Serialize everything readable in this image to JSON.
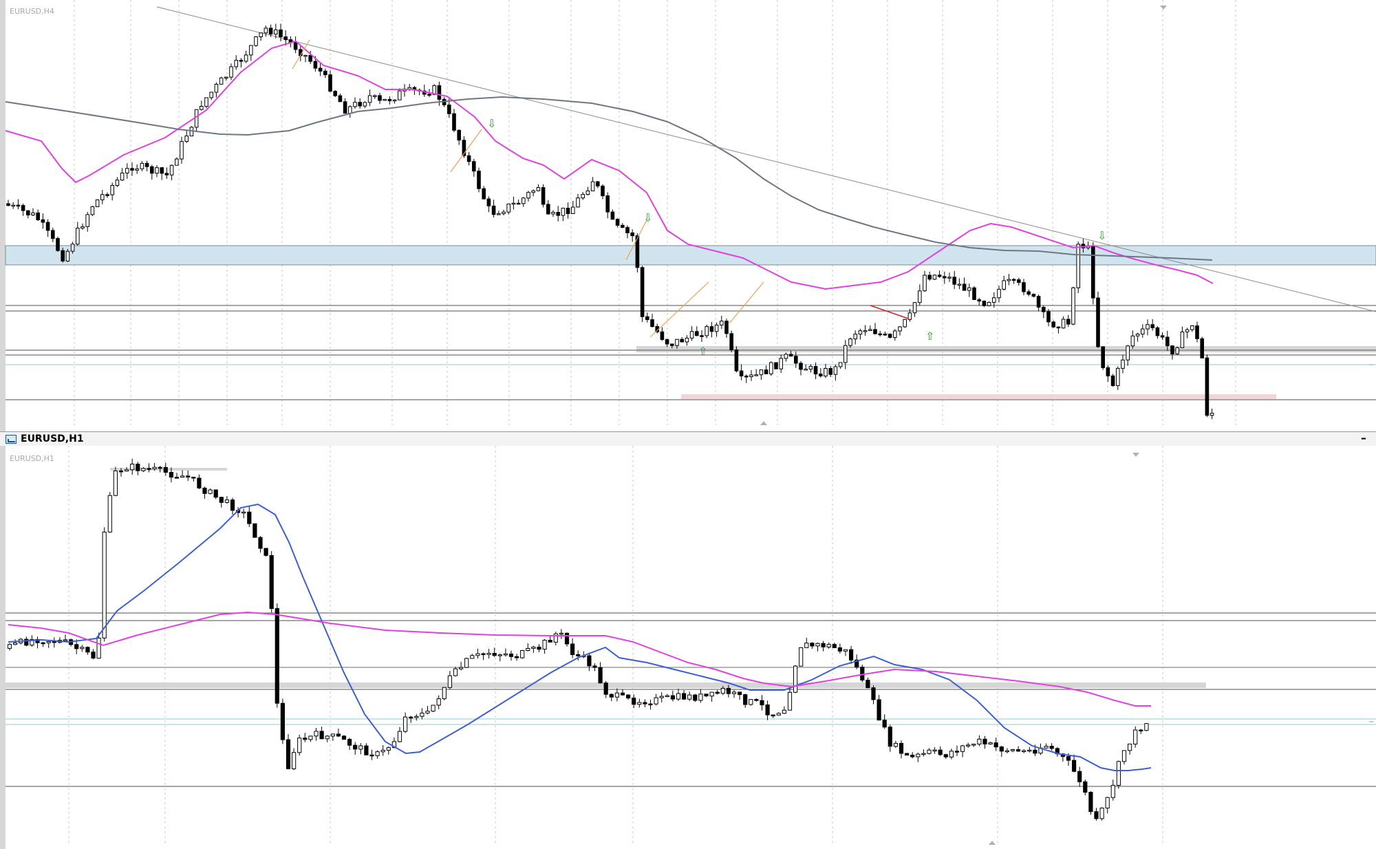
{
  "top_chart": {
    "symbol_label": "EURUSD,H4"
  },
  "bottom_window": {
    "title": "EURUSD,H1",
    "minimize_glyph": "–",
    "symbol_label": "EURUSD,H1"
  },
  "colors": {
    "bull_candle": "#ffffff",
    "bear_candle": "#000000",
    "fast_ma": "#e040e0",
    "slow_ma_top": "#6e7682",
    "fast_ma_bottom": "#3a5fd0",
    "zone_blue": "#cfe4ee",
    "zone_gray": "#d6d6d6",
    "zone_pink": "#f6d4d4",
    "grid": "#c8c8c8"
  },
  "chart_data": [
    {
      "type": "candlestick",
      "title": "EURUSD,H4",
      "indicators": [
        "fast moving average (magenta)",
        "slow moving average (gray)",
        "downward trendline"
      ],
      "zones": [
        "blue resistance zone",
        "gray zone",
        "pink support zone"
      ],
      "grid": true
    },
    {
      "type": "candlestick",
      "title": "EURUSD,H1",
      "indicators": [
        "fast moving average (blue)",
        "slow moving average (magenta)"
      ],
      "zones": [
        "gray zone"
      ],
      "grid": true
    }
  ]
}
